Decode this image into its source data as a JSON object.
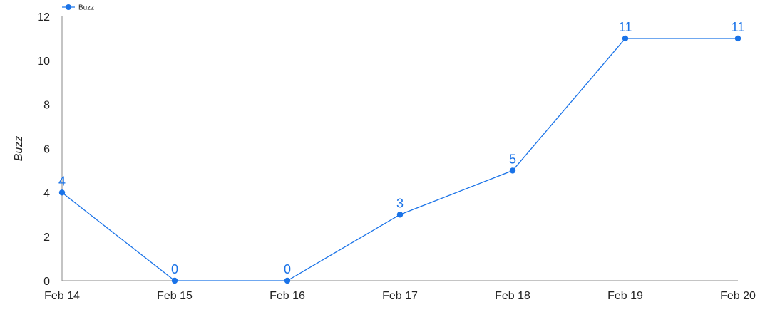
{
  "chart_data": {
    "type": "line",
    "x": [
      "Feb 14",
      "Feb 15",
      "Feb 16",
      "Feb 17",
      "Feb 18",
      "Feb 19",
      "Feb 20"
    ],
    "series": [
      {
        "name": "Buzz",
        "values": [
          4,
          0,
          0,
          3,
          5,
          11,
          11
        ],
        "color": "#1a73e8"
      }
    ],
    "ylabel": "Buzz",
    "ylim": [
      0,
      12
    ],
    "yticks": [
      0,
      2,
      4,
      6,
      8,
      10,
      12
    ],
    "legend": "top-left",
    "grid": false,
    "data_labels": true
  }
}
